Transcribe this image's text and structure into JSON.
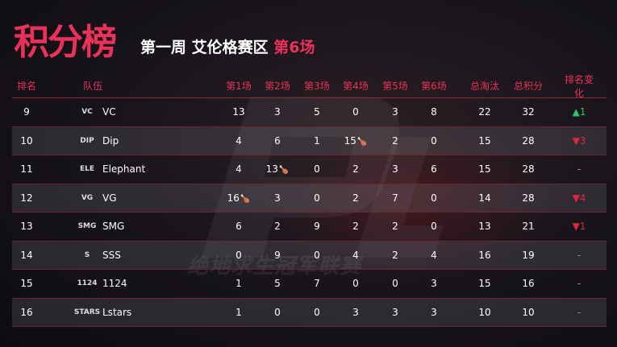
{
  "header": {
    "title": "积分榜",
    "subtitle_prefix": "第一周 艾伦格赛区 ",
    "subtitle_highlight": "第6场"
  },
  "watermark": {
    "logo_text": "PCL",
    "text": "绝地求生冠军联赛"
  },
  "colors": {
    "accent": "#e8325a",
    "up": "#2cc36b",
    "down": "#e0283c"
  },
  "columns": [
    "排名",
    "队伍",
    "第1场",
    "第2场",
    "第3场",
    "第4场",
    "第5场",
    "第6场",
    "总淘汰",
    "总积分",
    "排名变化"
  ],
  "rows": [
    {
      "rank": "9",
      "team": "VC",
      "logo": "VC",
      "games": [
        "13",
        "3",
        "5",
        "0",
        "3",
        "8"
      ],
      "chicken": -1,
      "elims": "22",
      "points": "32",
      "change": "▲1",
      "dir": "up"
    },
    {
      "rank": "10",
      "team": "Dip",
      "logo": "DIP",
      "games": [
        "4",
        "6",
        "1",
        "15",
        "2",
        "0"
      ],
      "chicken": 3,
      "elims": "15",
      "points": "28",
      "change": "▼3",
      "dir": "down"
    },
    {
      "rank": "11",
      "team": "Elephant",
      "logo": "ELE",
      "games": [
        "4",
        "13",
        "0",
        "2",
        "3",
        "6"
      ],
      "chicken": 1,
      "elims": "15",
      "points": "28",
      "change": "-",
      "dir": "none"
    },
    {
      "rank": "12",
      "team": "VG",
      "logo": "VG",
      "games": [
        "16",
        "3",
        "0",
        "2",
        "7",
        "0"
      ],
      "chicken": 0,
      "elims": "14",
      "points": "28",
      "change": "▼4",
      "dir": "down"
    },
    {
      "rank": "13",
      "team": "SMG",
      "logo": "SMG",
      "games": [
        "6",
        "2",
        "9",
        "2",
        "2",
        "0"
      ],
      "chicken": -1,
      "elims": "13",
      "points": "21",
      "change": "▼1",
      "dir": "down"
    },
    {
      "rank": "14",
      "team": "SSS",
      "logo": "S",
      "games": [
        "0",
        "9",
        "0",
        "4",
        "2",
        "4"
      ],
      "chicken": -1,
      "elims": "16",
      "points": "19",
      "change": "-",
      "dir": "none"
    },
    {
      "rank": "15",
      "team": "1124",
      "logo": "1124",
      "games": [
        "1",
        "5",
        "7",
        "0",
        "0",
        "3"
      ],
      "chicken": -1,
      "elims": "15",
      "points": "16",
      "change": "-",
      "dir": "none"
    },
    {
      "rank": "16",
      "team": "Lstars",
      "logo": "STARS",
      "games": [
        "1",
        "0",
        "0",
        "3",
        "3",
        "3"
      ],
      "chicken": -1,
      "elims": "10",
      "points": "10",
      "change": "-",
      "dir": "none"
    }
  ]
}
